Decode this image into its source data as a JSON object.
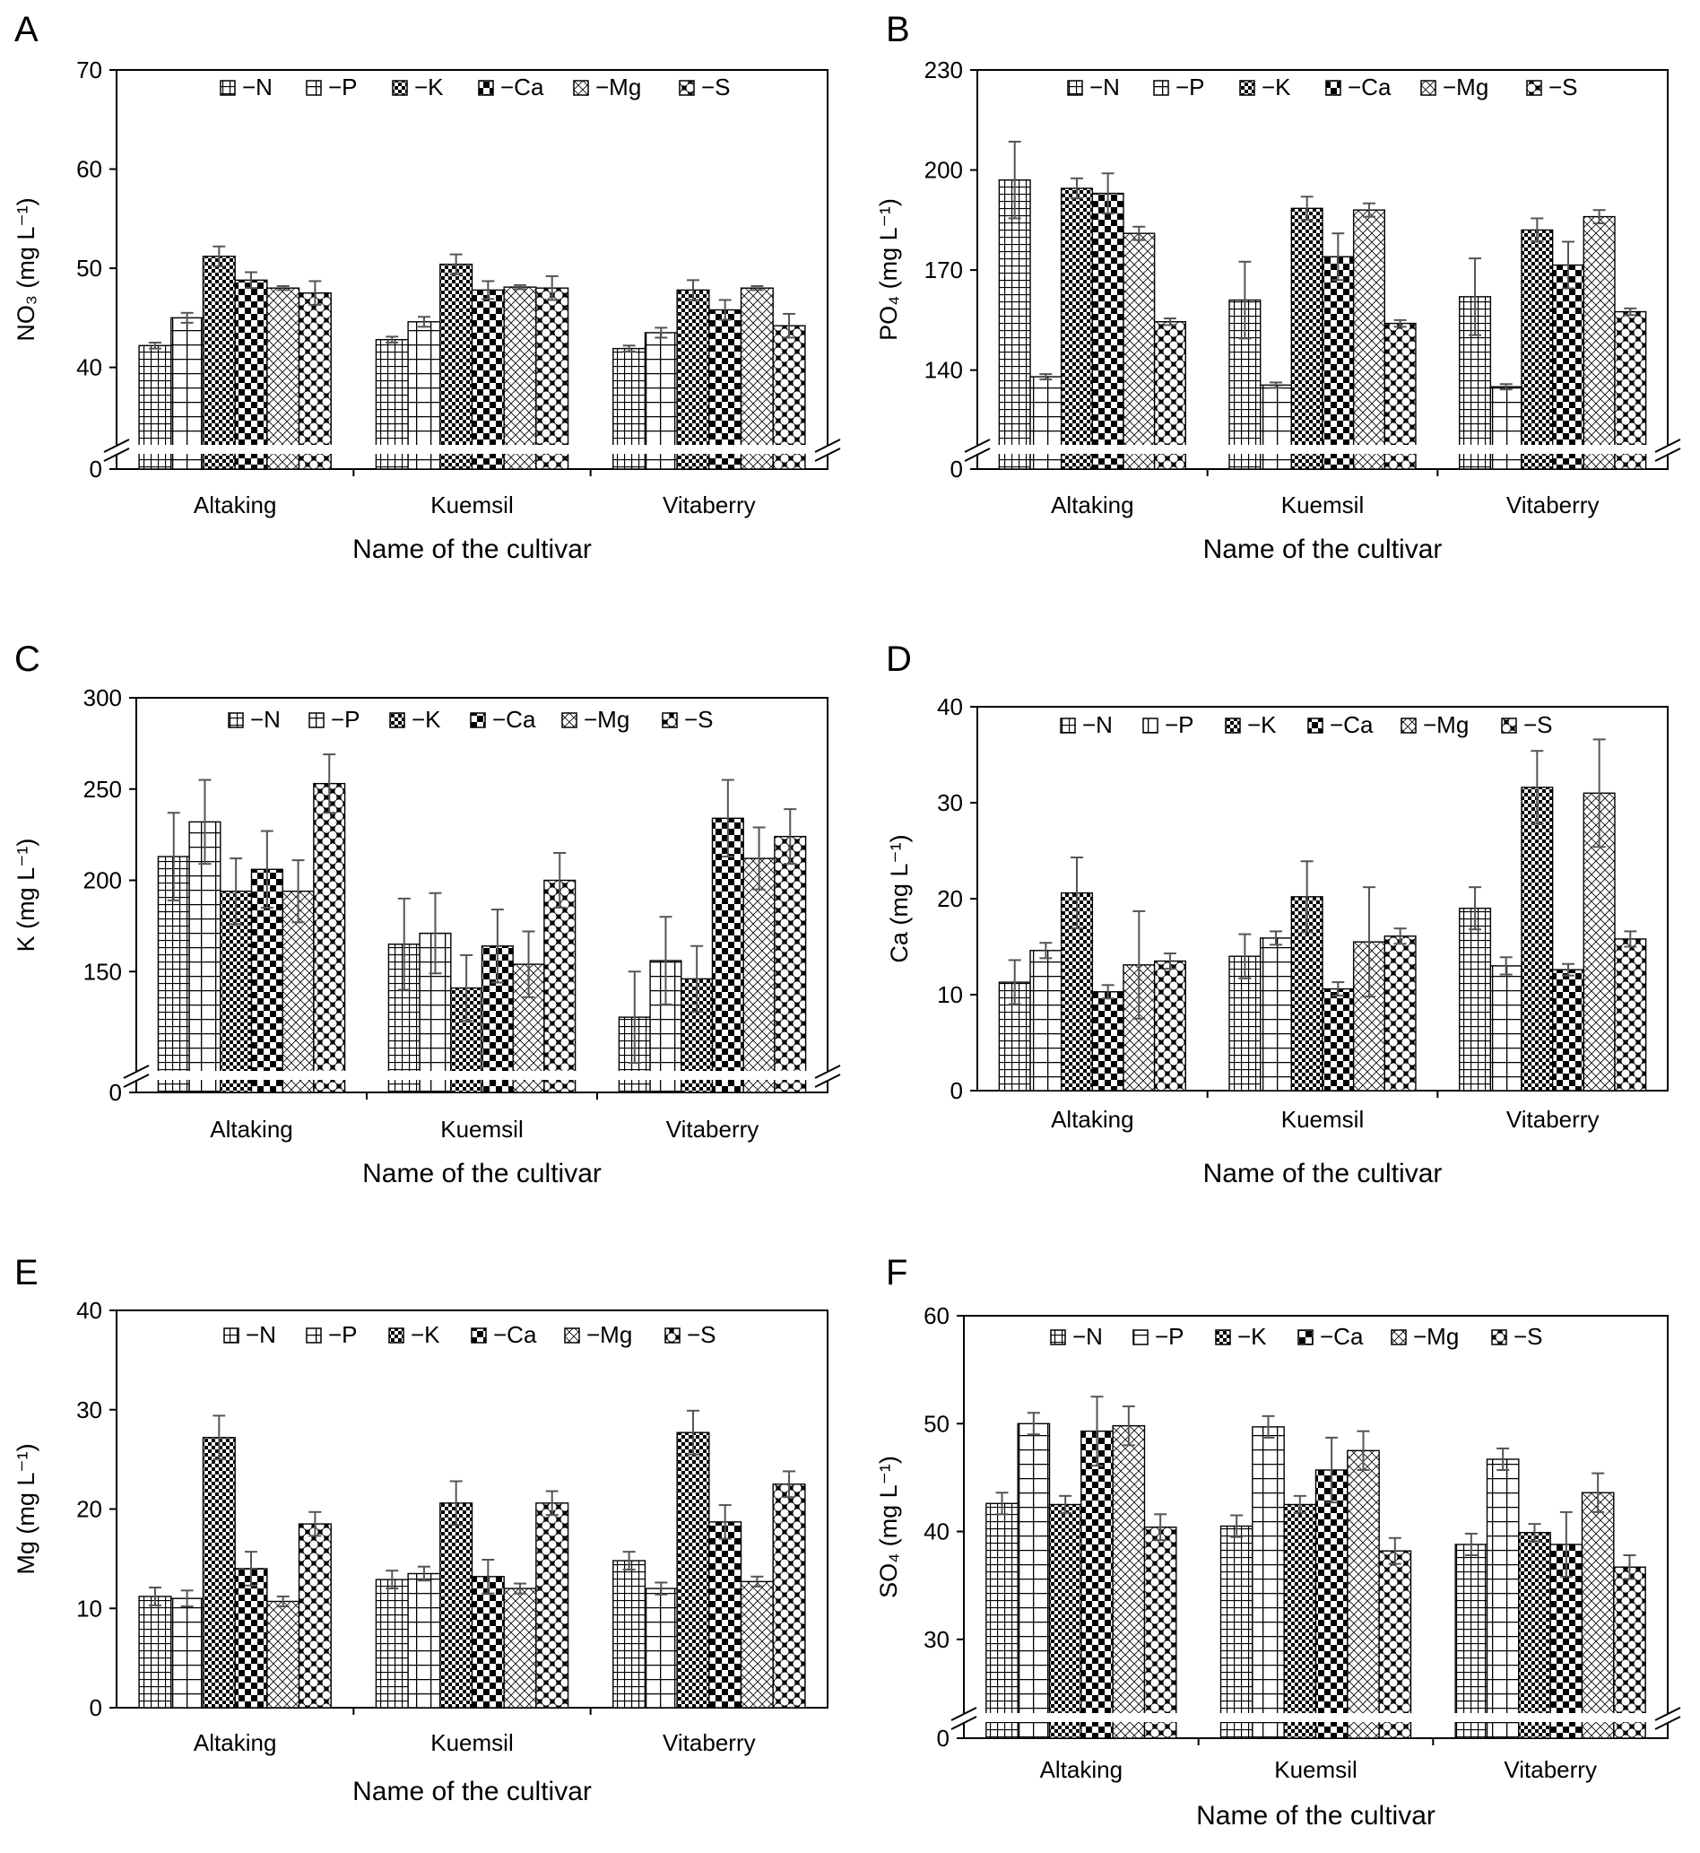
{
  "series_names": [
    "−N",
    "−P",
    "−K",
    "−Ca",
    "−Mg",
    "−S"
  ],
  "categories": [
    "Altaking",
    "Kuemsil",
    "Vitaberry"
  ],
  "xlabel": "Name of the cultivar",
  "chart_data": [
    {
      "panel": "A",
      "type": "bar",
      "ylabel": "NO₃ (mg L⁻¹)",
      "ylim": [
        0,
        70
      ],
      "axis_break": true,
      "break_display_min": 33,
      "yticks": [
        0,
        40,
        50,
        60,
        70
      ],
      "categories": [
        "Altaking",
        "Kuemsil",
        "Vitaberry"
      ],
      "series": [
        {
          "name": "−N",
          "values": [
            42.2,
            42.8,
            41.9
          ],
          "errors": [
            0.3,
            0.3,
            0.3
          ]
        },
        {
          "name": "−P",
          "values": [
            45.0,
            44.6,
            43.5
          ],
          "errors": [
            0.5,
            0.5,
            0.5
          ]
        },
        {
          "name": "−K",
          "values": [
            51.2,
            50.4,
            47.8
          ],
          "errors": [
            1.0,
            1.0,
            1.0
          ]
        },
        {
          "name": "−Ca",
          "values": [
            48.8,
            47.8,
            45.8
          ],
          "errors": [
            0.8,
            0.9,
            1.0
          ]
        },
        {
          "name": "−Mg",
          "values": [
            48.0,
            48.1,
            48.0
          ],
          "errors": [
            0.2,
            0.2,
            0.2
          ]
        },
        {
          "name": "−S",
          "values": [
            47.5,
            48.0,
            44.2
          ],
          "errors": [
            1.2,
            1.2,
            1.2
          ]
        }
      ]
    },
    {
      "panel": "B",
      "type": "bar",
      "ylabel": "PO₄ (mg L⁻¹)",
      "ylim": [
        0,
        230
      ],
      "axis_break": true,
      "break_display_min": 120,
      "yticks": [
        0,
        140,
        170,
        200,
        230
      ],
      "categories": [
        "Altaking",
        "Kuemsil",
        "Vitaberry"
      ],
      "series": [
        {
          "name": "−N",
          "values": [
            197.0,
            161.0,
            162.0
          ],
          "errors": [
            11.5,
            11.5,
            11.5
          ]
        },
        {
          "name": "−P",
          "values": [
            138.0,
            135.5,
            135.0
          ],
          "errors": [
            0.8,
            0.8,
            0.8
          ]
        },
        {
          "name": "−K",
          "values": [
            194.5,
            188.5,
            182.0
          ],
          "errors": [
            3.0,
            3.5,
            3.5
          ]
        },
        {
          "name": "−Ca",
          "values": [
            193.0,
            174.0,
            171.5
          ],
          "errors": [
            6.0,
            7.0,
            7.0
          ]
        },
        {
          "name": "−Mg",
          "values": [
            181.0,
            188.0,
            186.0
          ],
          "errors": [
            2.0,
            2.0,
            2.0
          ]
        },
        {
          "name": "−S",
          "values": [
            154.5,
            154.0,
            157.5
          ],
          "errors": [
            1.0,
            1.0,
            1.0
          ]
        }
      ]
    },
    {
      "panel": "C",
      "type": "bar",
      "ylabel": "K (mg L⁻¹)",
      "ylim": [
        0,
        300
      ],
      "axis_break": true,
      "break_display_min": 100,
      "yticks": [
        0,
        150,
        200,
        250,
        300
      ],
      "categories": [
        "Altaking",
        "Kuemsil",
        "Vitaberry"
      ],
      "series": [
        {
          "name": "−N",
          "values": [
            213,
            165,
            125
          ],
          "errors": [
            24,
            25,
            25
          ]
        },
        {
          "name": "−P",
          "values": [
            232,
            171,
            156
          ],
          "errors": [
            23,
            22,
            24
          ]
        },
        {
          "name": "−K",
          "values": [
            194,
            141,
            146
          ],
          "errors": [
            18,
            18,
            18
          ]
        },
        {
          "name": "−Ca",
          "values": [
            206,
            164,
            234
          ],
          "errors": [
            21,
            20,
            21
          ]
        },
        {
          "name": "−Mg",
          "values": [
            194,
            154,
            212
          ],
          "errors": [
            17,
            18,
            17
          ]
        },
        {
          "name": "−S",
          "values": [
            253,
            200,
            224
          ],
          "errors": [
            16,
            15,
            15
          ]
        }
      ]
    },
    {
      "panel": "D",
      "type": "bar",
      "ylabel": "Ca (mg L⁻¹)",
      "ylim": [
        0,
        40
      ],
      "axis_break": false,
      "yticks": [
        0,
        10,
        20,
        30,
        40
      ],
      "categories": [
        "Altaking",
        "Kuemsil",
        "Vitaberry"
      ],
      "series": [
        {
          "name": "−N",
          "values": [
            11.3,
            14.0,
            19.0
          ],
          "errors": [
            2.3,
            2.3,
            2.2
          ]
        },
        {
          "name": "−P",
          "values": [
            14.6,
            15.9,
            13.0
          ],
          "errors": [
            0.8,
            0.7,
            0.9
          ]
        },
        {
          "name": "−K",
          "values": [
            20.6,
            20.2,
            31.6
          ],
          "errors": [
            3.7,
            3.7,
            3.8
          ]
        },
        {
          "name": "−Ca",
          "values": [
            10.3,
            10.6,
            12.6
          ],
          "errors": [
            0.7,
            0.7,
            0.6
          ]
        },
        {
          "name": "−Mg",
          "values": [
            13.1,
            15.5,
            31.0
          ],
          "errors": [
            5.6,
            5.7,
            5.6
          ]
        },
        {
          "name": "−S",
          "values": [
            13.5,
            16.1,
            15.8
          ],
          "errors": [
            0.8,
            0.8,
            0.8
          ]
        }
      ]
    },
    {
      "panel": "E",
      "type": "bar",
      "ylabel": "Mg (mg L⁻¹)",
      "ylim": [
        0,
        40
      ],
      "axis_break": false,
      "yticks": [
        0,
        10,
        20,
        30,
        40
      ],
      "categories": [
        "Altaking",
        "Kuemsil",
        "Vitaberry"
      ],
      "series": [
        {
          "name": "−N",
          "values": [
            11.2,
            12.9,
            14.8
          ],
          "errors": [
            0.9,
            0.9,
            0.9
          ]
        },
        {
          "name": "−P",
          "values": [
            11.0,
            13.5,
            12.0
          ],
          "errors": [
            0.8,
            0.7,
            0.6
          ]
        },
        {
          "name": "−K",
          "values": [
            27.2,
            20.6,
            27.7
          ],
          "errors": [
            2.2,
            2.2,
            2.2
          ]
        },
        {
          "name": "−Ca",
          "values": [
            14.0,
            13.2,
            18.7
          ],
          "errors": [
            1.7,
            1.7,
            1.7
          ]
        },
        {
          "name": "−Mg",
          "values": [
            10.7,
            12.0,
            12.7
          ],
          "errors": [
            0.5,
            0.5,
            0.5
          ]
        },
        {
          "name": "−S",
          "values": [
            18.5,
            20.6,
            22.5
          ],
          "errors": [
            1.2,
            1.2,
            1.3
          ]
        }
      ]
    },
    {
      "panel": "F",
      "type": "bar",
      "ylabel": "SO₄ (mg L⁻¹)",
      "ylim": [
        0,
        60
      ],
      "axis_break": true,
      "break_display_min": 24,
      "yticks": [
        0,
        30,
        40,
        50,
        60
      ],
      "categories": [
        "Altaking",
        "Kuemsil",
        "Vitaberry"
      ],
      "series": [
        {
          "name": "−N",
          "values": [
            42.6,
            40.5,
            38.8
          ],
          "errors": [
            1.0,
            1.0,
            1.0
          ]
        },
        {
          "name": "−P",
          "values": [
            50.0,
            49.7,
            46.7
          ],
          "errors": [
            1.0,
            1.0,
            1.0
          ]
        },
        {
          "name": "−K",
          "values": [
            42.5,
            42.5,
            39.9
          ],
          "errors": [
            0.8,
            0.8,
            0.8
          ]
        },
        {
          "name": "−Ca",
          "values": [
            49.3,
            45.7,
            38.8
          ],
          "errors": [
            3.2,
            3.0,
            3.0
          ]
        },
        {
          "name": "−Mg",
          "values": [
            49.8,
            47.5,
            43.6
          ],
          "errors": [
            1.8,
            1.8,
            1.8
          ]
        },
        {
          "name": "−S",
          "values": [
            40.4,
            38.2,
            36.7
          ],
          "errors": [
            1.2,
            1.2,
            1.1
          ]
        }
      ]
    }
  ]
}
